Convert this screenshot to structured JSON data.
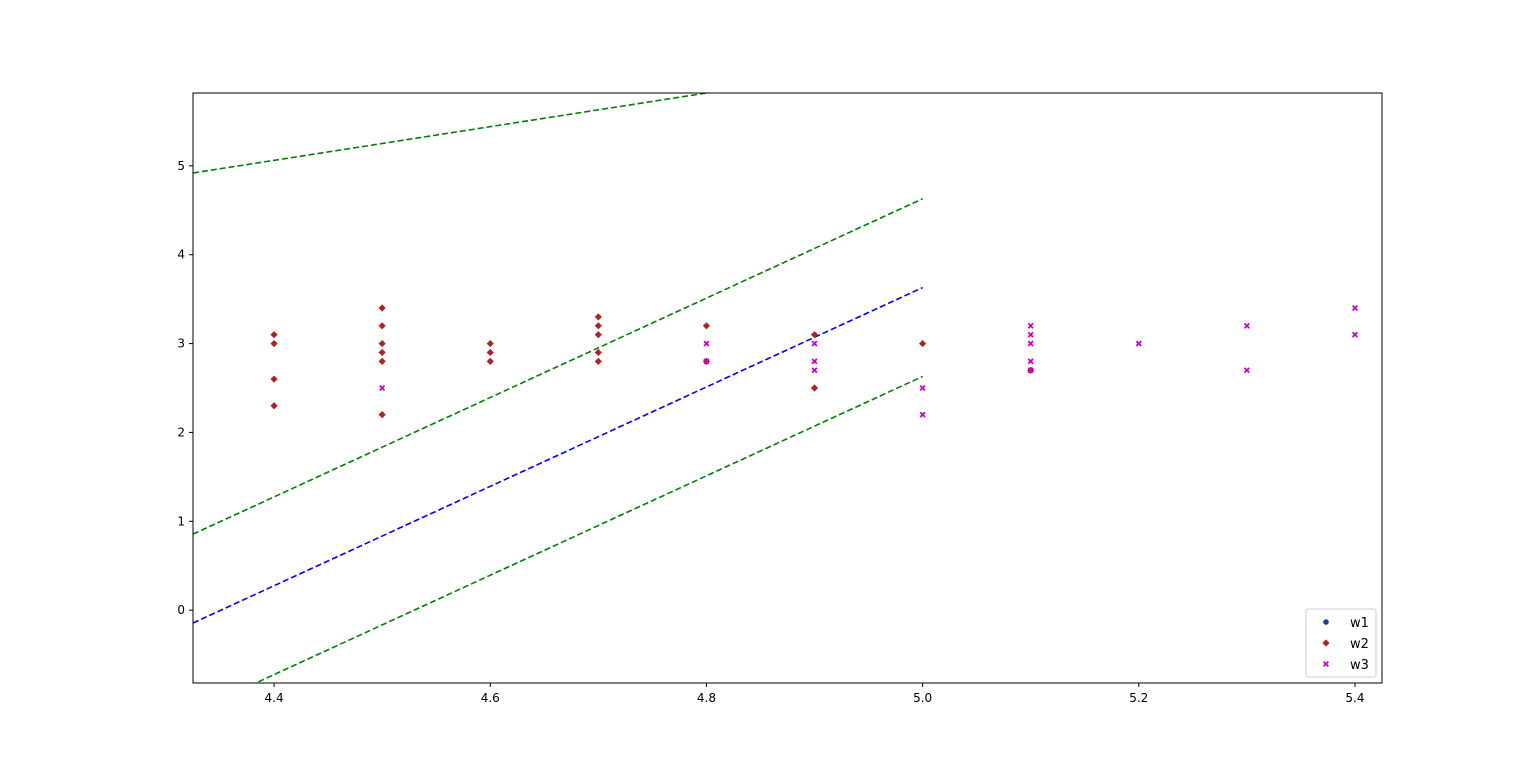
{
  "chart_data": {
    "type": "scatter",
    "title": "",
    "xlabel": "",
    "ylabel": "",
    "xlim": [
      4.325,
      5.425
    ],
    "ylim": [
      -0.82,
      5.82
    ],
    "xticks": [
      4.4,
      4.6,
      4.8,
      5.0,
      5.2,
      5.4
    ],
    "xtick_labels": [
      "4.4",
      "4.6",
      "4.8",
      "5.0",
      "5.2",
      "5.4"
    ],
    "yticks": [
      0,
      1,
      2,
      3,
      4,
      5
    ],
    "ytick_labels": [
      "0",
      "1",
      "2",
      "3",
      "4",
      "5"
    ],
    "grid": false,
    "legend_position": "bottom-right",
    "series": [
      {
        "name": "w1",
        "marker": "circle",
        "color": "#1f3fa0",
        "points": [
          [
            4.8,
            2.8
          ],
          [
            5.1,
            2.7
          ]
        ]
      },
      {
        "name": "w2",
        "marker": "diamond",
        "color": "#b22222",
        "points": [
          [
            4.4,
            3.1
          ],
          [
            4.4,
            3.0
          ],
          [
            4.4,
            2.6
          ],
          [
            4.4,
            2.3
          ],
          [
            4.5,
            3.4
          ],
          [
            4.5,
            3.2
          ],
          [
            4.5,
            3.0
          ],
          [
            4.5,
            2.9
          ],
          [
            4.5,
            2.8
          ],
          [
            4.5,
            2.2
          ],
          [
            4.6,
            3.0
          ],
          [
            4.6,
            2.9
          ],
          [
            4.6,
            2.8
          ],
          [
            4.7,
            3.3
          ],
          [
            4.7,
            3.2
          ],
          [
            4.7,
            3.1
          ],
          [
            4.7,
            2.9
          ],
          [
            4.7,
            2.8
          ],
          [
            4.8,
            3.2
          ],
          [
            4.8,
            2.8
          ],
          [
            4.9,
            3.1
          ],
          [
            4.9,
            2.5
          ],
          [
            5.0,
            3.0
          ],
          [
            5.1,
            2.7
          ]
        ]
      },
      {
        "name": "w3",
        "marker": "x",
        "color": "#cc00cc",
        "points": [
          [
            4.5,
            2.5
          ],
          [
            4.8,
            3.0
          ],
          [
            4.8,
            2.8
          ],
          [
            4.9,
            3.0
          ],
          [
            4.9,
            2.8
          ],
          [
            4.9,
            2.7
          ],
          [
            5.0,
            2.5
          ],
          [
            5.0,
            2.2
          ],
          [
            5.1,
            3.2
          ],
          [
            5.1,
            3.1
          ],
          [
            5.1,
            3.0
          ],
          [
            5.1,
            2.8
          ],
          [
            5.1,
            2.7
          ],
          [
            5.2,
            3.0
          ],
          [
            5.3,
            3.2
          ],
          [
            5.3,
            2.7
          ],
          [
            5.4,
            3.4
          ],
          [
            5.4,
            3.1
          ]
        ]
      }
    ],
    "lines": [
      {
        "color": "#008000",
        "style": "dashed",
        "points": [
          [
            4.325,
            4.92
          ],
          [
            4.8,
            5.82
          ]
        ]
      },
      {
        "color": "#008000",
        "style": "dashed",
        "points": [
          [
            4.325,
            0.855
          ],
          [
            5.0,
            4.63
          ]
        ]
      },
      {
        "color": "#0000ff",
        "style": "dashed",
        "points": [
          [
            4.325,
            -0.145
          ],
          [
            5.0,
            3.63
          ]
        ]
      },
      {
        "color": "#008000",
        "style": "dashed",
        "points": [
          [
            4.325,
            -1.145
          ],
          [
            5.0,
            2.63
          ]
        ]
      }
    ]
  }
}
